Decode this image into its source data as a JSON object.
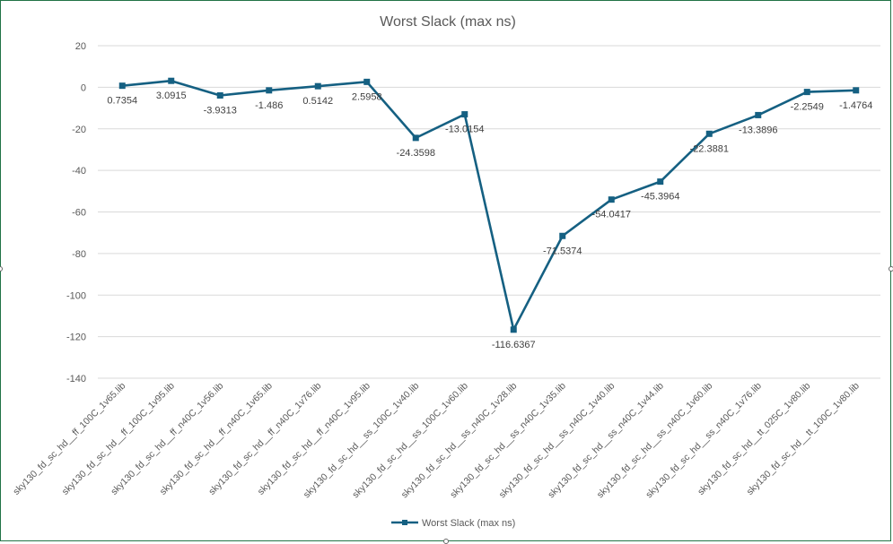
{
  "chart_data": {
    "type": "line",
    "title": "Worst Slack (max ns)",
    "xlabel": "",
    "ylabel": "",
    "ylim": [
      -140,
      20
    ],
    "yticks": [
      20,
      0,
      -20,
      -40,
      -60,
      -80,
      -100,
      -120,
      -140
    ],
    "grid": true,
    "legend_placement": "bottom",
    "categories": [
      "sky130_fd_sc_hd__ff_100C_1v65.lib",
      "sky130_fd_sc_hd__ff_100C_1v95.lib",
      "sky130_fd_sc_hd__ff_n40C_1v56.lib",
      "sky130_fd_sc_hd__ff_n40C_1v65.lib",
      "sky130_fd_sc_hd__ff_n40C_1v76.lib",
      "sky130_fd_sc_hd__ff_n40C_1v95.lib",
      "sky130_fd_sc_hd__ss_100C_1v40.lib",
      "sky130_fd_sc_hd__ss_100C_1v60.lib",
      "sky130_fd_sc_hd__ss_n40C_1v28.lib",
      "sky130_fd_sc_hd__ss_n40C_1v35.lib",
      "sky130_fd_sc_hd__ss_n40C_1v40.lib",
      "sky130_fd_sc_hd__ss_n40C_1v44.lib",
      "sky130_fd_sc_hd__ss_n40C_1v60.lib",
      "sky130_fd_sc_hd__ss_n40C_1v76.lib",
      "sky130_fd_sc_hd__tt_025C_1v80.lib",
      "sky130_fd_sc_hd__tt_100C_1v80.lib"
    ],
    "series": [
      {
        "name": "Worst Slack (max ns)",
        "color": "#156082",
        "values": [
          0.7354,
          3.0915,
          -3.9313,
          -1.486,
          0.5142,
          2.5958,
          -24.3598,
          -13.0154,
          -116.6367,
          -71.5374,
          -54.0417,
          -45.3964,
          -22.3881,
          -13.3896,
          -2.2549,
          -1.4764
        ],
        "labels": [
          "0.7354",
          "3.0915",
          "-3.9313",
          "-1.486",
          "0.5142",
          "2.5958",
          "-24.3598",
          "-13.0154",
          "-116.6367",
          "-71.5374",
          "-54.0417",
          "-45.3964",
          "-22.3881",
          "-13.3896",
          "-2.2549",
          "-1.4764"
        ]
      }
    ]
  },
  "colors": {
    "series": "#156082",
    "grid": "#d9d9d9",
    "text": "#595959",
    "border": "#217346"
  }
}
